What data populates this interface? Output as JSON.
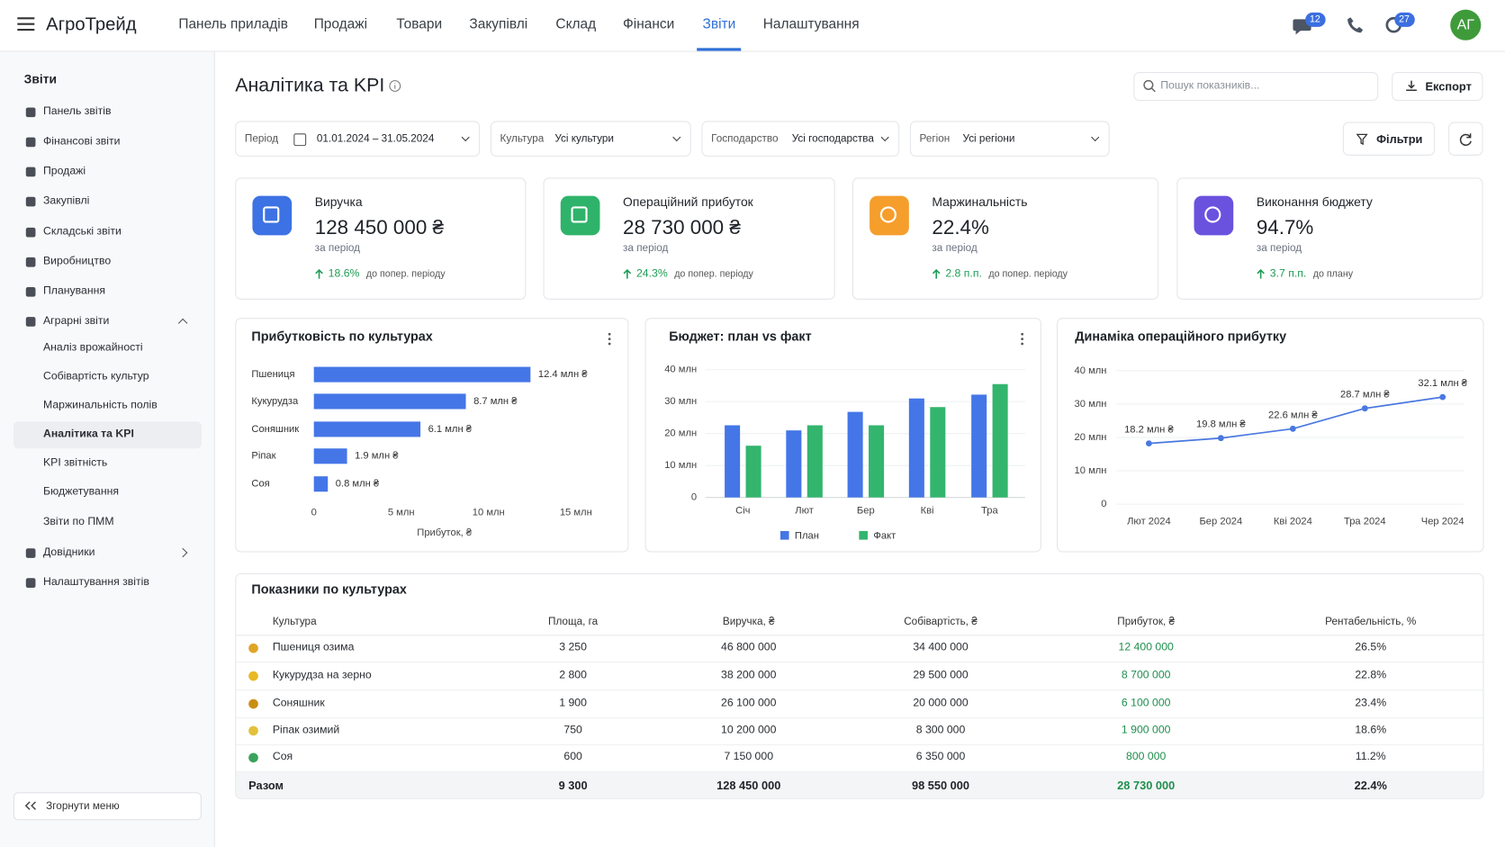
{
  "header": {
    "logo": "АгроТрейд",
    "nav": [
      "Панель приладів",
      "Продажі",
      "Товари",
      "Закупівлі",
      "Склад",
      "Фінанси",
      "Звіти",
      "Налаштування"
    ],
    "badges": [
      "12",
      "27"
    ],
    "avatar": "АГ"
  },
  "sidebar": {
    "title": "Звіти",
    "items": [
      {
        "label": "Панель звітів"
      },
      {
        "label": "Фінансові звіти"
      },
      {
        "label": "Продажі"
      },
      {
        "label": "Закупівлі"
      },
      {
        "label": "Складські звіти"
      },
      {
        "label": "Виробництво"
      },
      {
        "label": "Планування"
      },
      {
        "label": "Аграрні звіти",
        "children": [
          "Аналіз врожайності",
          "Собівартість культур",
          "Маржинальність полів",
          "Аналітика та KPI",
          "KPI звітність",
          "Бюджетування",
          "Звіти по ПММ"
        ]
      },
      {
        "label": "Довідники"
      },
      {
        "label": "Налаштування звітів"
      }
    ],
    "collapse": "Згорнути меню"
  },
  "page": {
    "title": "Аналітика та KPI",
    "search_placeholder": "Пошук показників...",
    "export": "Експорт",
    "filters_button": "Фільтри",
    "filters": [
      {
        "label": "Період",
        "value": "01.01.2024 – 31.05.2024"
      },
      {
        "label": "Культура",
        "value": "Усі культури"
      },
      {
        "label": "Господарство",
        "value": "Усі господарства"
      },
      {
        "label": "Регіон",
        "value": "Усі регіони"
      }
    ]
  },
  "kpis": [
    {
      "title": "Виручка",
      "value": "128 450 000 ₴",
      "period": "за період",
      "change": "18.6%",
      "note": "до попер. періоду"
    },
    {
      "title": "Операційний прибуток",
      "value": "28 730 000 ₴",
      "period": "за період",
      "change": "24.3%",
      "note": "до попер. періоду"
    },
    {
      "title": "Маржинальність",
      "value": "22.4%",
      "period": "за період",
      "change": "2.8 п.п.",
      "note": "до попер. періоду"
    },
    {
      "title": "Виконання бюджету",
      "value": "94.7%",
      "period": "за період",
      "change": "3.7 п.п.",
      "note": "до плану"
    }
  ],
  "chart_data": [
    {
      "type": "hbar",
      "title": "Прибутковість по культурах",
      "categories": [
        "Пшениця",
        "Кукурудза",
        "Соняшник",
        "Ріпак",
        "Соя"
      ],
      "values": [
        12.4,
        8.7,
        6.1,
        1.9,
        0.8
      ],
      "value_labels": [
        "12.4 млн ₴",
        "8.7 млн ₴",
        "6.1 млн ₴",
        "1.9 млн ₴",
        "0.8 млн ₴"
      ],
      "color": "#4576e8",
      "xlim": [
        0,
        15
      ],
      "xticks": [
        0,
        {
          "value": 5,
          "label": "5 млн"
        },
        {
          "value": 10,
          "label": "10 млн"
        },
        {
          "value": 15,
          "label": "15 млн"
        }
      ],
      "xlabel": "Прибуток, ₴",
      "grid": false
    },
    {
      "type": "bar",
      "title": "Бюджет: план vs факт",
      "categories": [
        "Січ",
        "Лют",
        "Бер",
        "Кві",
        "Тра"
      ],
      "series": [
        {
          "name": "План",
          "color": "#4576e8",
          "values": [
            22.6,
            21,
            26.8,
            31,
            32.2
          ]
        },
        {
          "name": "Факт",
          "color": "#33b56e",
          "values": [
            16.2,
            22.6,
            22.6,
            28.3,
            35.5
          ]
        }
      ],
      "ylim": [
        0,
        40
      ],
      "yticks": [
        0,
        {
          "value": 10,
          "label": "10 млн"
        },
        {
          "value": 20,
          "label": "20 млн"
        },
        {
          "value": 30,
          "label": "30 млн"
        },
        {
          "value": 40,
          "label": "40 млн"
        }
      ],
      "grid": true
    },
    {
      "type": "line",
      "title": "Динаміка операційного прибутку",
      "categories": [
        "Лют 2024",
        "Бер 2024",
        "Кві 2024",
        "Тра 2024",
        "Чер 2024"
      ],
      "values": [
        18.2,
        19.8,
        22.6,
        28.7,
        32.1
      ],
      "value_labels": [
        "18.2 млн ₴",
        "19.8 млн ₴",
        "22.6 млн ₴",
        "28.7 млн ₴",
        "32.1 млн ₴"
      ],
      "color": "#4a78e0",
      "ylim": [
        0,
        40
      ],
      "yticks": [
        0,
        {
          "value": 10,
          "label": "10 млн"
        },
        {
          "value": 20,
          "label": "20 млн"
        },
        {
          "value": 30,
          "label": "30 млн"
        },
        {
          "value": 40,
          "label": "40 млн"
        }
      ],
      "grid": true
    }
  ],
  "table": {
    "title": "Показники по культурах",
    "columns": [
      "Культура",
      "Площа, га",
      "Виручка, ₴",
      "Собівартість, ₴",
      "Прибуток, ₴",
      "Рентабельність, %"
    ],
    "rows": [
      [
        "Пшениця озима",
        "3 250",
        "46 800 000",
        "34 400 000",
        "12 400 000",
        "26.5%"
      ],
      [
        "Кукурудза на зерно",
        "2 800",
        "38 200 000",
        "29 500 000",
        "8 700 000",
        "22.8%"
      ],
      [
        "Соняшник",
        "1 900",
        "26 100 000",
        "20 000 000",
        "6 100 000",
        "23.4%"
      ],
      [
        "Ріпак озимий",
        "750",
        "10 200 000",
        "8 300 000",
        "1 900 000",
        "18.6%"
      ],
      [
        "Соя",
        "600",
        "7 150 000",
        "6 350 000",
        "800 000",
        "11.2%"
      ]
    ],
    "total": [
      "Разом",
      "9 300",
      "128 450 000",
      "98 550 000",
      "28 730 000",
      "22.4%"
    ]
  }
}
